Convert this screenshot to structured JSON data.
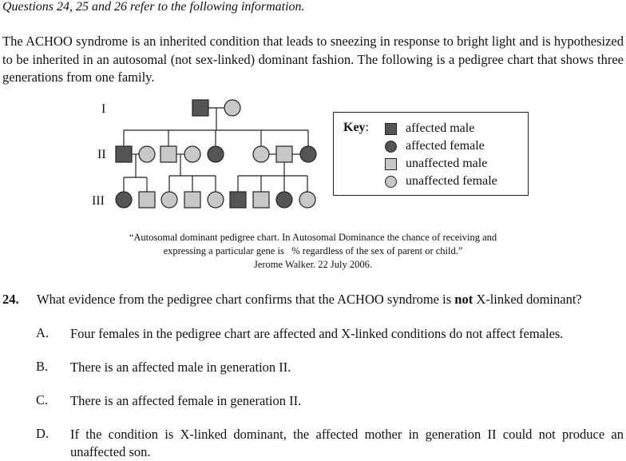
{
  "header": "Questions 24, 25 and 26 refer to the following information.",
  "intro": "The ACHOO syndrome is an inherited condition that leads to sneezing in response to bright light and is hypothesized to be inherited in an autosomal (not sex-linked) dominant fashion.  The following is a pedigree chart that shows three generations from one family.",
  "pedigree": {
    "generation_labels": [
      "I",
      "II",
      "III"
    ],
    "colors": {
      "affected": "#555555",
      "unaffected": "#c8c8c8",
      "line": "#222222"
    }
  },
  "key": {
    "title": "Key",
    "colon": ":",
    "items": [
      {
        "label": "affected male",
        "shape": "square",
        "status": "affected"
      },
      {
        "label": "affected female",
        "shape": "circle",
        "status": "affected"
      },
      {
        "label": "unaffected male",
        "shape": "square",
        "status": "unaffected"
      },
      {
        "label": "unaffected female",
        "shape": "circle",
        "status": "unaffected"
      }
    ]
  },
  "caption": {
    "line1": "“Autosomal dominant pedigree chart. In Autosomal Dominance the chance of receiving and",
    "line2": "expressing a particular gene is   % regardless of the sex of parent or child.”",
    "line3": "Jerome Walker. 22 July 2006."
  },
  "question": {
    "number": "24.",
    "text_before": "What evidence from the pedigree chart confirms that the ACHOO syndrome is ",
    "text_bold": "not",
    "text_after": " X-linked dominant?",
    "options": [
      {
        "letter": "A.",
        "text": "Four females in the pedigree chart are affected and X-linked conditions do not affect females."
      },
      {
        "letter": "B.",
        "text": "There is an affected male in generation II."
      },
      {
        "letter": "C.",
        "text": "There is an affected female in generation II."
      },
      {
        "letter": "D.",
        "text": "If the condition is X-linked dominant, the affected mother in generation II could not produce an unaffected son."
      }
    ]
  }
}
